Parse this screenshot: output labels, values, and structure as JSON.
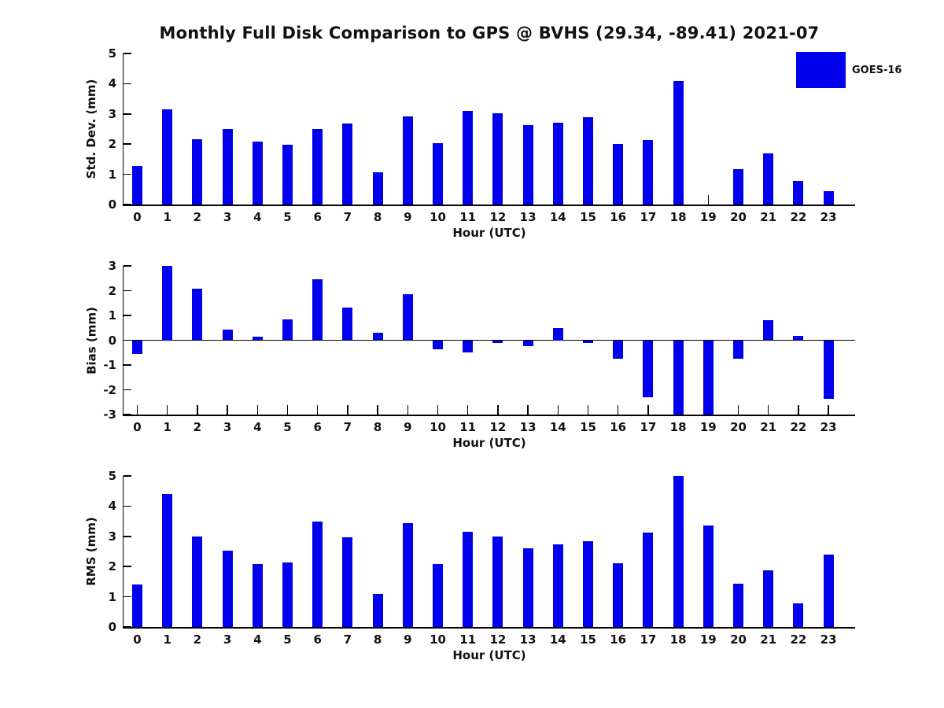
{
  "title": "Monthly Full Disk Comparison to GPS @ BVHS (29.34, -89.41) 2021-07",
  "legend": {
    "label": "GOES-16",
    "color": "#0000EE"
  },
  "colors": {
    "bar": "#0000EE",
    "axis": "#000000",
    "text": "#111111",
    "background": "#FFFFFF"
  },
  "chart_data": [
    {
      "type": "bar",
      "title": "",
      "series_name": "GOES-16",
      "ylabel": "Std. Dev. (mm)",
      "xlabel": "Hour (UTC)",
      "ylim": [
        0,
        5
      ],
      "yticks": [
        0,
        1,
        2,
        3,
        4,
        5
      ],
      "grid": false,
      "categories": [
        "0",
        "1",
        "2",
        "3",
        "4",
        "5",
        "6",
        "7",
        "8",
        "9",
        "10",
        "11",
        "12",
        "13",
        "14",
        "15",
        "16",
        "17",
        "18",
        "19",
        "20",
        "21",
        "22",
        "23"
      ],
      "values": [
        1.28,
        3.15,
        2.17,
        2.5,
        2.08,
        1.98,
        2.5,
        2.68,
        1.07,
        2.92,
        2.03,
        3.1,
        3.03,
        2.62,
        2.72,
        2.88,
        2.0,
        2.13,
        4.08,
        null,
        1.18,
        1.7,
        0.78,
        0.45
      ]
    },
    {
      "type": "bar",
      "title": "",
      "series_name": "GOES-16",
      "ylabel": "Bias (mm)",
      "xlabel": "Hour (UTC)",
      "ylim": [
        -3,
        3
      ],
      "yticks": [
        -3,
        -2,
        -1,
        0,
        1,
        2,
        3
      ],
      "grid": false,
      "categories": [
        "0",
        "1",
        "2",
        "3",
        "4",
        "5",
        "6",
        "7",
        "8",
        "9",
        "10",
        "11",
        "12",
        "13",
        "14",
        "15",
        "16",
        "17",
        "18",
        "19",
        "20",
        "21",
        "22",
        "23"
      ],
      "values": [
        -0.55,
        3.0,
        2.09,
        0.44,
        0.15,
        0.84,
        2.45,
        1.32,
        0.3,
        1.85,
        -0.38,
        -0.5,
        -0.12,
        -0.25,
        0.5,
        -0.12,
        -0.75,
        -2.3,
        -3.0,
        -3.0,
        -0.75,
        0.82,
        0.17,
        -2.35
      ]
    },
    {
      "type": "bar",
      "title": "",
      "series_name": "GOES-16",
      "ylabel": "RMS (mm)",
      "xlabel": "Hour (UTC)",
      "ylim": [
        0,
        5
      ],
      "yticks": [
        0,
        1,
        2,
        3,
        4,
        5
      ],
      "grid": false,
      "categories": [
        "0",
        "1",
        "2",
        "3",
        "4",
        "5",
        "6",
        "7",
        "8",
        "9",
        "10",
        "11",
        "12",
        "13",
        "14",
        "15",
        "16",
        "17",
        "18",
        "19",
        "20",
        "21",
        "22",
        "23"
      ],
      "values": [
        1.4,
        4.4,
        3.0,
        2.53,
        2.08,
        2.13,
        3.5,
        2.97,
        1.1,
        3.45,
        2.08,
        3.15,
        3.0,
        2.6,
        2.73,
        2.84,
        2.11,
        3.13,
        5.0,
        3.35,
        1.43,
        1.87,
        0.78,
        2.4
      ]
    }
  ]
}
